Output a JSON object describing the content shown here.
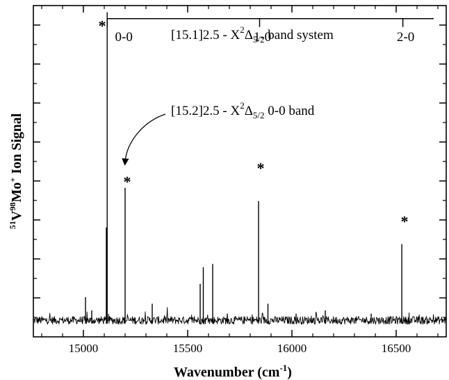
{
  "chart_data": {
    "type": "line",
    "title": "",
    "xlabel": "Wavenumber (cm",
    "xlabel_sup": "-1",
    "xlabel_close": ")",
    "ylabel": {
      "iso1": "51",
      "el1": "V",
      "iso2": "98",
      "el2": "Mo",
      "charge": "+",
      "rest": " Ion Signal"
    },
    "xlim": [
      14760,
      16740
    ],
    "ylim": [
      0,
      1.0
    ],
    "x_ticks": [
      15000,
      15500,
      16000,
      16500
    ],
    "x_tick_labels": [
      "15000",
      "15500",
      "16000",
      "16500"
    ],
    "y_tick_count": 8,
    "y_ticks_labeled": false,
    "grid": false,
    "baseline": 0.05,
    "noise_amplitude": 0.012,
    "trace_x_range": [
      14760,
      16740
    ],
    "peaks": [
      {
        "x": 15010,
        "y": 0.12
      },
      {
        "x": 15040,
        "y": 0.08
      },
      {
        "x": 15110,
        "y": 0.33
      },
      {
        "x": 15114,
        "y": 0.98
      },
      {
        "x": 15200,
        "y": 0.45
      },
      {
        "x": 15330,
        "y": 0.1
      },
      {
        "x": 15560,
        "y": 0.16
      },
      {
        "x": 15575,
        "y": 0.21
      },
      {
        "x": 15620,
        "y": 0.22
      },
      {
        "x": 15690,
        "y": 0.07
      },
      {
        "x": 15840,
        "y": 0.41
      },
      {
        "x": 15885,
        "y": 0.1
      },
      {
        "x": 16020,
        "y": 0.07
      },
      {
        "x": 16160,
        "y": 0.08
      },
      {
        "x": 16380,
        "y": 0.07
      },
      {
        "x": 16527,
        "y": 0.28
      }
    ],
    "stars": [
      {
        "x": 15090,
        "y": 0.94
      },
      {
        "x": 15210,
        "y": 0.47
      },
      {
        "x": 15850,
        "y": 0.51
      },
      {
        "x": 16540,
        "y": 0.35
      }
    ],
    "band_system": {
      "label_pre": "[15.1]2.5 - X",
      "label_sup": "2",
      "label_delta": "Δ",
      "label_sub": "5/2",
      "label_post": " band system",
      "bracket_y": 0.95,
      "bracket_x": [
        15114,
        16680
      ],
      "bands": [
        {
          "label": "0-0",
          "x": 15114
        },
        {
          "label": "1-0",
          "x": 15845
        },
        {
          "label": "2-0",
          "x": 16532
        }
      ]
    },
    "second_band": {
      "label_pre": "[15.2]2.5 - X",
      "label_sup": "2",
      "label_delta": "Δ",
      "label_sub": "5/2",
      "label_post": " 0-0 band",
      "arrow_target": {
        "x": 15200,
        "y": 0.515
      }
    }
  },
  "colors": {
    "trace": "#000000",
    "axis": "#000000",
    "background": "#ffffff"
  }
}
